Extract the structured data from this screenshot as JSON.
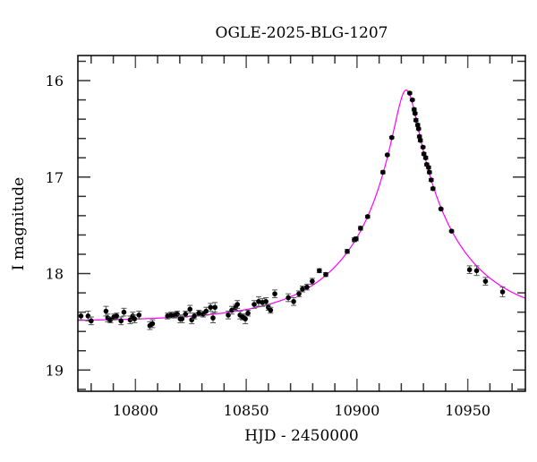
{
  "chart_data": {
    "type": "scatter",
    "title": "OGLE-2025-BLG-1207",
    "xlabel": "HJD - 2450000",
    "ylabel": "I magnitude",
    "xlim": [
      10774,
      10976
    ],
    "ylim": [
      19.22,
      15.74
    ],
    "y_inverted": true,
    "xticks": [
      10800,
      10850,
      10900,
      10950
    ],
    "xtick_labels": [
      "10800",
      "10850",
      "10900",
      "10950"
    ],
    "yticks": [
      16,
      17,
      18,
      19
    ],
    "ytick_labels": [
      "16",
      "17",
      "18",
      "19"
    ],
    "grid": false,
    "colors": {
      "points": "#000000",
      "errorbars": "#555555",
      "model": "#ff00ff"
    },
    "series": [
      {
        "kind": "points-with-errorbars",
        "points": [
          [
            10775.4,
            18.44,
            0.04
          ],
          [
            10778.6,
            18.44,
            0.05
          ],
          [
            10780.0,
            18.49,
            0.04
          ],
          [
            10786.7,
            18.39,
            0.05
          ],
          [
            10787.5,
            18.46,
            0.04
          ],
          [
            10788.7,
            18.48,
            0.03
          ],
          [
            10790.3,
            18.45,
            0.03
          ],
          [
            10791.5,
            18.44,
            0.03
          ],
          [
            10793.5,
            18.49,
            0.04
          ],
          [
            10794.8,
            18.4,
            0.04
          ],
          [
            10797.6,
            18.48,
            0.04
          ],
          [
            10798.8,
            18.44,
            0.04
          ],
          [
            10799.6,
            18.47,
            0.04
          ],
          [
            10801.6,
            18.43,
            0.04
          ],
          [
            10806.5,
            18.54,
            0.04
          ],
          [
            10807.7,
            18.52,
            0.04
          ],
          [
            10814.5,
            18.44,
            0.03
          ],
          [
            10816.1,
            18.43,
            0.03
          ],
          [
            10817.7,
            18.43,
            0.03
          ],
          [
            10818.9,
            18.42,
            0.03
          ],
          [
            10820.2,
            18.47,
            0.04
          ],
          [
            10821.0,
            18.47,
            0.04
          ],
          [
            10822.6,
            18.42,
            0.03
          ],
          [
            10824.6,
            18.37,
            0.04
          ],
          [
            10825.4,
            18.48,
            0.04
          ],
          [
            10826.6,
            18.44,
            0.03
          ],
          [
            10828.6,
            18.41,
            0.03
          ],
          [
            10830.6,
            18.42,
            0.03
          ],
          [
            10831.9,
            18.39,
            0.04
          ],
          [
            10833.9,
            18.35,
            0.04
          ],
          [
            10835.0,
            18.46,
            0.05
          ],
          [
            10835.9,
            18.35,
            0.05
          ],
          [
            10841.9,
            18.43,
            0.04
          ],
          [
            10843.5,
            18.38,
            0.04
          ],
          [
            10845.2,
            18.35,
            0.03
          ],
          [
            10846.0,
            18.32,
            0.04
          ],
          [
            10847.2,
            18.43,
            0.04
          ],
          [
            10848.4,
            18.45,
            0.03
          ],
          [
            10849.6,
            18.47,
            0.05
          ],
          [
            10850.8,
            18.41,
            0.03
          ],
          [
            10853.6,
            18.32,
            0.04
          ],
          [
            10855.6,
            18.29,
            0.05
          ],
          [
            10857.3,
            18.3,
            0.04
          ],
          [
            10858.9,
            18.29,
            0.04
          ],
          [
            10860.0,
            18.35,
            0.03
          ],
          [
            10861.0,
            18.38,
            0.03
          ],
          [
            10862.9,
            18.21,
            0.04
          ],
          [
            10869.0,
            18.25,
            0.04
          ],
          [
            10871.4,
            18.29,
            0.04
          ],
          [
            10873.8,
            18.21,
            0.03
          ],
          [
            10875.4,
            18.16,
            0.03
          ],
          [
            10877.4,
            18.14,
            0.03
          ],
          [
            10879.8,
            18.08,
            0.03
          ],
          [
            10883.0,
            17.97,
            0.02
          ],
          [
            10885.9,
            18.01,
            0.02
          ],
          [
            10895.6,
            17.77,
            0.02
          ],
          [
            10898.8,
            17.65,
            0.02
          ],
          [
            10899.6,
            17.64,
            0.02
          ],
          [
            10901.6,
            17.53,
            0.02
          ],
          [
            10904.8,
            17.41,
            0.015
          ],
          [
            10911.7,
            16.95,
            0.015
          ],
          [
            10913.7,
            16.77,
            0.01
          ],
          [
            10915.7,
            16.59,
            0.01
          ],
          [
            10923.8,
            16.13,
            0.01
          ],
          [
            10925.0,
            16.2,
            0.01
          ],
          [
            10925.8,
            16.3,
            0.015
          ],
          [
            10926.2,
            16.34,
            0.01
          ],
          [
            10926.6,
            16.41,
            0.015
          ],
          [
            10927.4,
            16.46,
            0.015
          ],
          [
            10927.8,
            16.5,
            0.01
          ],
          [
            10928.2,
            16.58,
            0.015
          ],
          [
            10928.6,
            16.62,
            0.015
          ],
          [
            10929.8,
            16.69,
            0.01
          ],
          [
            10930.2,
            16.76,
            0.015
          ],
          [
            10931.0,
            16.8,
            0.015
          ],
          [
            10931.5,
            16.87,
            0.015
          ],
          [
            10932.3,
            16.9,
            0.015
          ],
          [
            10932.7,
            16.95,
            0.015
          ],
          [
            10933.5,
            17.03,
            0.015
          ],
          [
            10934.3,
            17.12,
            0.015
          ],
          [
            10937.9,
            17.33,
            0.01
          ],
          [
            10942.7,
            17.56,
            0.01
          ],
          [
            10950.8,
            17.96,
            0.04
          ],
          [
            10954.0,
            17.97,
            0.05
          ],
          [
            10958.0,
            18.08,
            0.04
          ],
          [
            10965.7,
            18.19,
            0.05
          ]
        ]
      },
      {
        "kind": "model-curve",
        "model": {
          "type": "Paczynski",
          "t0": 10922.2,
          "tE": 47,
          "u0": 0.11,
          "I_base": 18.5
        }
      }
    ]
  }
}
